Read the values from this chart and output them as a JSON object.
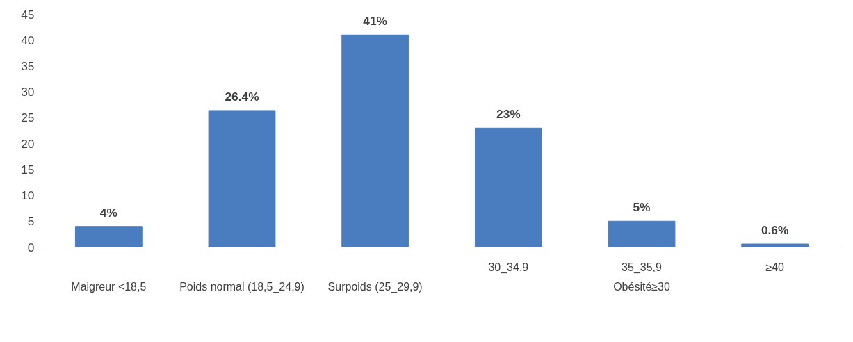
{
  "chart_data": {
    "type": "bar",
    "categories": [
      "Maigreur <18,5",
      "Poids normal (18,5_24,9)",
      "Surpoids (25_29,9)",
      "30_34,9",
      "35_35,9",
      "≥40"
    ],
    "values": [
      4,
      26.4,
      41,
      23,
      5,
      0.6
    ],
    "value_labels": [
      "4%",
      "26.4%",
      "41%",
      "23%",
      "5%",
      "0.6%"
    ],
    "color": "#4a7cc0",
    "ylim": [
      0,
      45
    ],
    "yticks": [
      0,
      5,
      10,
      15,
      20,
      25,
      30,
      35,
      40,
      45
    ],
    "annotations": [
      "Obésité≥30"
    ]
  }
}
